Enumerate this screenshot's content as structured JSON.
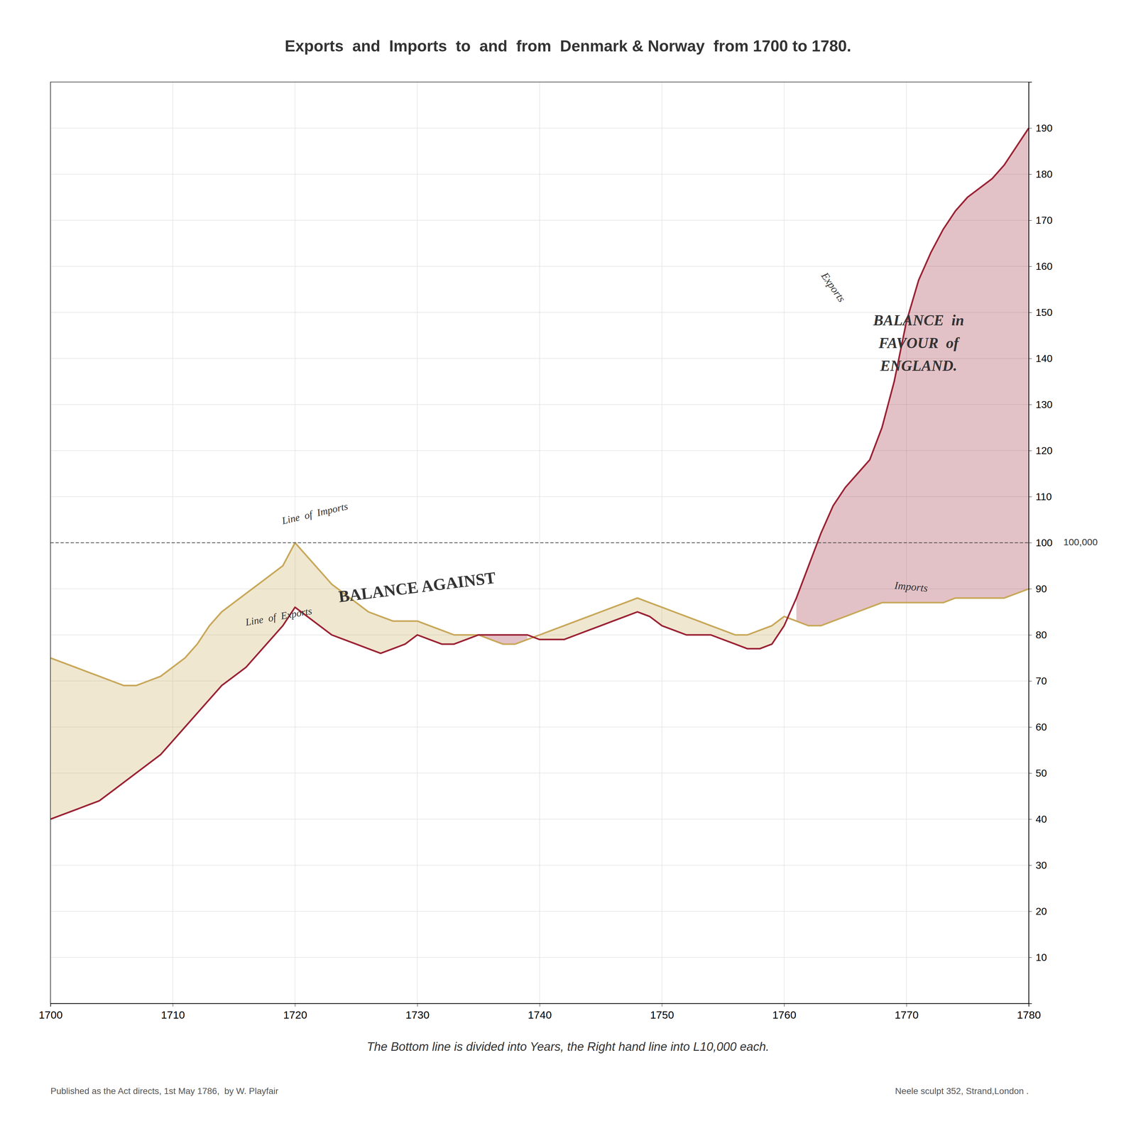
{
  "chart_data": {
    "type": "line",
    "title": "Exports  and  Imports  to  and  from  Denmark & Norway  from 1700 to 1780.",
    "subtitle": "The Bottom line is divided into Years, the Right hand line into L10,000 each.",
    "footnote_left": "Published as the Act directs, 1st May 1786,  by W. Playfair",
    "footnote_right": "Neele sculpt 352, Strand,London .",
    "x": [
      1700,
      1701,
      1702,
      1703,
      1704,
      1705,
      1706,
      1707,
      1708,
      1709,
      1710,
      1711,
      1712,
      1713,
      1714,
      1715,
      1716,
      1717,
      1718,
      1719,
      1720,
      1721,
      1722,
      1723,
      1724,
      1725,
      1726,
      1727,
      1728,
      1729,
      1730,
      1731,
      1732,
      1733,
      1734,
      1735,
      1736,
      1737,
      1738,
      1739,
      1740,
      1741,
      1742,
      1743,
      1744,
      1745,
      1746,
      1747,
      1748,
      1749,
      1750,
      1751,
      1752,
      1753,
      1754,
      1755,
      1756,
      1757,
      1758,
      1759,
      1760,
      1761,
      1762,
      1763,
      1764,
      1765,
      1766,
      1767,
      1768,
      1769,
      1770,
      1771,
      1772,
      1773,
      1774,
      1775,
      1776,
      1777,
      1778,
      1779,
      1780
    ],
    "series": [
      {
        "color": "#c8a85a",
        "values": [
          75,
          74,
          73,
          72,
          71,
          70,
          69,
          69,
          70,
          71,
          73,
          75,
          78,
          82,
          85,
          87,
          89,
          91,
          93,
          95,
          100,
          97,
          94,
          91,
          89,
          87,
          85,
          84,
          83,
          83,
          83,
          82,
          81,
          80,
          80,
          80,
          79,
          78,
          78,
          79,
          80,
          81,
          82,
          83,
          84,
          85,
          86,
          87,
          88,
          87,
          86,
          85,
          84,
          83,
          82,
          81,
          80,
          80,
          81,
          82,
          84,
          83,
          82,
          82,
          83,
          84,
          85,
          86,
          87,
          87,
          87,
          87,
          87,
          87,
          88,
          88,
          88,
          88,
          88,
          89,
          90
        ]
      },
      {
        "color": "#9b2335",
        "values": [
          40,
          41,
          42,
          43,
          44,
          46,
          48,
          50,
          52,
          54,
          57,
          60,
          63,
          66,
          69,
          71,
          73,
          76,
          79,
          82,
          86,
          84,
          82,
          80,
          79,
          78,
          77,
          76,
          77,
          78,
          80,
          79,
          78,
          78,
          79,
          80,
          80,
          80,
          80,
          80,
          79,
          79,
          79,
          80,
          81,
          82,
          83,
          84,
          85,
          84,
          82,
          81,
          80,
          80,
          80,
          79,
          78,
          77,
          77,
          78,
          82,
          88,
          95,
          102,
          108,
          112,
          115,
          118,
          125,
          135,
          148,
          157,
          163,
          168,
          172,
          175,
          177,
          179,
          182,
          186,
          190
        ]
      }
    ],
    "xlim": [
      1700,
      1780
    ],
    "xticks": [
      1700,
      1710,
      1720,
      1730,
      1740,
      1750,
      1760,
      1770,
      1780
    ],
    "ylim": [
      0,
      200
    ],
    "yticks": [
      10,
      20,
      30,
      40,
      50,
      60,
      70,
      80,
      90,
      100,
      110,
      120,
      130,
      140,
      150,
      160,
      170,
      180,
      190
    ],
    "grid": true,
    "reference_line": {
      "value": 100,
      "label": "100,000"
    },
    "annotations": [
      {
        "text": "Line  of  Imports",
        "x": 1719,
        "y": 104
      },
      {
        "text": "Line  of  Exports",
        "x": 1716,
        "y": 82
      },
      {
        "text": "BALANCE AGAINST",
        "x": 1730,
        "y": 90
      },
      {
        "text": "BALANCE  in\nFAVOUR  of\nENGLAND.",
        "x": 1771,
        "y": 143
      },
      {
        "text": "Exports",
        "x": 1763,
        "y": 158
      },
      {
        "text": "Imports",
        "x": 1769,
        "y": 90
      }
    ]
  }
}
